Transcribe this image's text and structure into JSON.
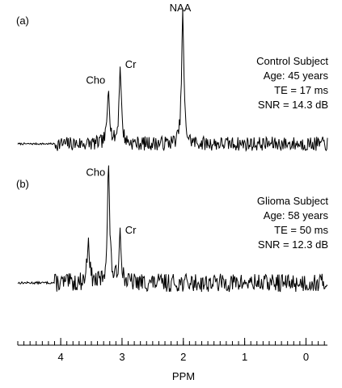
{
  "chart_data": [
    {
      "type": "line",
      "panel_label": "(a)",
      "xlabel": "PPM",
      "x_reversed": true,
      "xlim": [
        4.7,
        -0.35
      ],
      "info_lines": [
        "Control Subject",
        "Age: 45 years",
        "TE = 17 ms",
        "SNR = 14.3 dB"
      ],
      "peaks": [
        {
          "name": "NAA",
          "ppm": 2.01,
          "height": 1.0
        },
        {
          "name": "Cr",
          "ppm": 3.03,
          "height": 0.6
        },
        {
          "name": "Cho",
          "ppm": 3.22,
          "height": 0.44
        }
      ],
      "baseline_level": 0.0,
      "noise_amplitude": 0.055,
      "seed": 7
    },
    {
      "type": "line",
      "panel_label": "(b)",
      "xlabel": "PPM",
      "x_reversed": true,
      "xlim": [
        4.7,
        -0.35
      ],
      "info_lines": [
        "Glioma Subject",
        "Age: 58 years",
        "TE = 50 ms",
        "SNR = 12.3 dB"
      ],
      "peaks": [
        {
          "name": "Cho",
          "ppm": 3.22,
          "height": 0.95
        },
        {
          "name": "Cr",
          "ppm": 3.03,
          "height": 0.42
        },
        {
          "name": "",
          "ppm": 3.55,
          "height": 0.38
        }
      ],
      "baseline_level": 0.0,
      "noise_amplitude": 0.075,
      "seed": 13
    }
  ],
  "axis": {
    "ticks": [
      4,
      3,
      2,
      1,
      0
    ],
    "tick_labels": [
      "4",
      "3",
      "2",
      "1",
      "0"
    ],
    "minor_step": 0.1,
    "title": "PPM"
  }
}
